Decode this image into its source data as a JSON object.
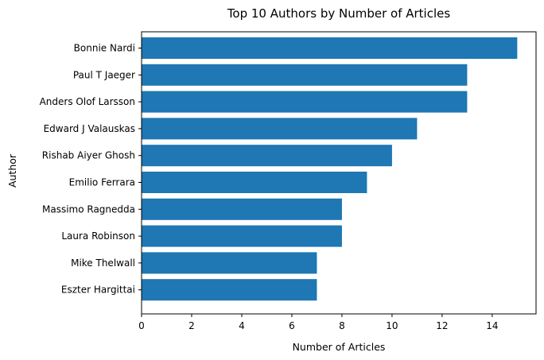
{
  "chart_data": {
    "type": "bar",
    "orientation": "horizontal",
    "title": "Top 10 Authors by Number of Articles",
    "xlabel": "Number of Articles",
    "ylabel": "Author",
    "categories": [
      "Bonnie Nardi",
      "Paul T Jaeger",
      "Anders Olof Larsson",
      "Edward J Valauskas",
      "Rishab Aiyer Ghosh",
      "Emilio Ferrara",
      "Massimo Ragnedda",
      "Laura Robinson",
      "Mike Thelwall",
      "Eszter Hargittai"
    ],
    "values": [
      15,
      13,
      13,
      11,
      10,
      9,
      8,
      8,
      7,
      7
    ],
    "xlim": [
      0,
      15.75
    ],
    "xticks": [
      0,
      2,
      4,
      6,
      8,
      10,
      12,
      14
    ],
    "grid": false,
    "bar_color": "#1f77b4"
  }
}
